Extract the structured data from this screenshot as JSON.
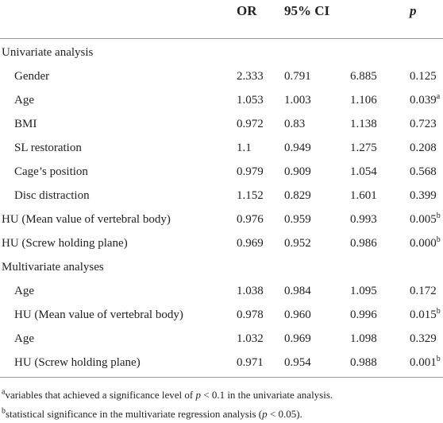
{
  "header": [
    "OR",
    "95% CI",
    "p"
  ],
  "sections": [
    {
      "title": "Univariate analysis",
      "rows": [
        {
          "label": "Gender",
          "cells": [
            "2.333",
            "0.791",
            "6.885",
            "0.125"
          ]
        },
        {
          "label": "Age",
          "cells": [
            "1.053",
            "1.003",
            "1.106",
            {
              "text": "0.039",
              "sup": "a"
            }
          ]
        },
        {
          "label": "BMI",
          "cells": [
            "0.972",
            "0.83",
            "1.138",
            "0.723"
          ]
        },
        {
          "label": "SL restoration",
          "cells": [
            "1.1",
            "0.949",
            "1.275",
            "0.208"
          ]
        },
        {
          "label": "Cage’s position",
          "cells": [
            "0.979",
            "0.909",
            "1.054",
            "0.568"
          ]
        },
        {
          "label": "Disc distraction",
          "cells": [
            "1.152",
            "0.829",
            "1.601",
            "0.399"
          ]
        },
        {
          "label": "HU (Mean value of vertebral body)",
          "outdent": true,
          "cells": [
            "0.976",
            "0.959",
            "0.993",
            {
              "text": "0.005",
              "sup": "b"
            }
          ]
        },
        {
          "label": "HU (Screw holding plane)",
          "outdent": true,
          "cells": [
            "0.969",
            "0.952",
            "0.986",
            {
              "text": "0.000",
              "sup": "b"
            }
          ]
        }
      ]
    },
    {
      "title": "Multivariate analyses",
      "rows": [
        {
          "label": "Age",
          "cells": [
            "1.038",
            "0.984",
            "1.095",
            "0.172"
          ]
        },
        {
          "label": "HU (Mean value of vertebral body)",
          "cells": [
            "0.978",
            "0.960",
            "0.996",
            {
              "text": "0.015",
              "sup": "b"
            }
          ]
        },
        {
          "label": "Age",
          "cells": [
            "1.032",
            "0.969",
            "1.098",
            "0.329"
          ]
        },
        {
          "label": "HU (Screw holding plane)",
          "cells": [
            "0.971",
            "0.954",
            "0.988",
            {
              "text": "0.001",
              "sup": "b"
            }
          ]
        }
      ]
    }
  ],
  "footnotes": [
    {
      "mark": "a",
      "parts": [
        "variables that achieved a significance level of ",
        "p",
        " < 0.1 in the univariate analysis."
      ]
    },
    {
      "mark": "b",
      "parts": [
        "statistical significance in the multivariate regression analysis (",
        "p",
        " < 0.05)."
      ]
    }
  ]
}
